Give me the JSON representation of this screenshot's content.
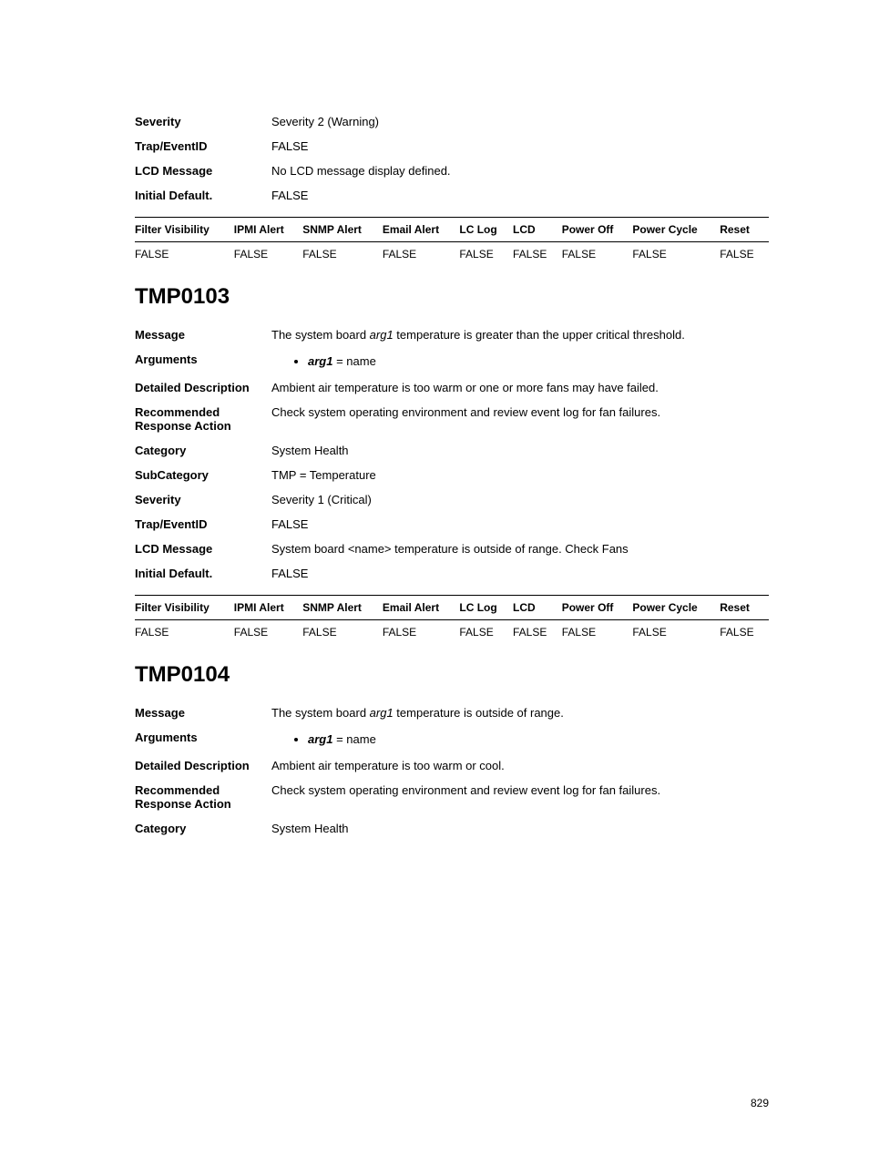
{
  "page_number": "829",
  "labels": {
    "severity": "Severity",
    "trap_event_id": "Trap/EventID",
    "lcd_message": "LCD Message",
    "initial_default": "Initial Default.",
    "message": "Message",
    "arguments": "Arguments",
    "detailed_description": "Detailed Description",
    "recommended_response_action": "Recommended Response Action",
    "category": "Category",
    "subcategory": "SubCategory"
  },
  "table_headers": {
    "filter_visibility": "Filter Visibility",
    "ipmi_alert": "IPMI Alert",
    "snmp_alert": "SNMP Alert",
    "email_alert": "Email Alert",
    "lc_log": "LC Log",
    "lcd": "LCD",
    "power_off": "Power Off",
    "power_cycle": "Power Cycle",
    "reset": "Reset"
  },
  "section1": {
    "severity": "Severity 2 (Warning)",
    "trap_event_id": "FALSE",
    "lcd_message": "No LCD message display defined.",
    "initial_default": "FALSE",
    "grid_row": [
      "FALSE",
      "FALSE",
      "FALSE",
      "FALSE",
      "FALSE",
      "FALSE",
      "FALSE",
      "FALSE",
      "FALSE"
    ]
  },
  "tmp0103": {
    "heading": "TMP0103",
    "message_pre": "The system board ",
    "message_arg": "arg1",
    "message_post": " temperature is greater than the upper critical threshold.",
    "arg_name": "arg1",
    "arg_eq": " = ",
    "arg_val": "name",
    "detailed_description": "Ambient air temperature is too warm or one or more fans may have failed.",
    "recommended_response_action": "Check system operating environment and review event log for fan failures.",
    "category": "System Health",
    "subcategory": "TMP = Temperature",
    "severity": "Severity 1 (Critical)",
    "trap_event_id": "FALSE",
    "lcd_message": "System board <name> temperature is outside of range. Check Fans",
    "initial_default": "FALSE",
    "grid_row": [
      "FALSE",
      "FALSE",
      "FALSE",
      "FALSE",
      "FALSE",
      "FALSE",
      "FALSE",
      "FALSE",
      "FALSE"
    ]
  },
  "tmp0104": {
    "heading": "TMP0104",
    "message_pre": "The system board ",
    "message_arg": "arg1",
    "message_post": " temperature is outside of range.",
    "arg_name": "arg1",
    "arg_eq": " = ",
    "arg_val": "name",
    "detailed_description": "Ambient air temperature is too warm or cool.",
    "recommended_response_action": "Check system operating environment and review event log for fan failures.",
    "category": "System Health"
  }
}
